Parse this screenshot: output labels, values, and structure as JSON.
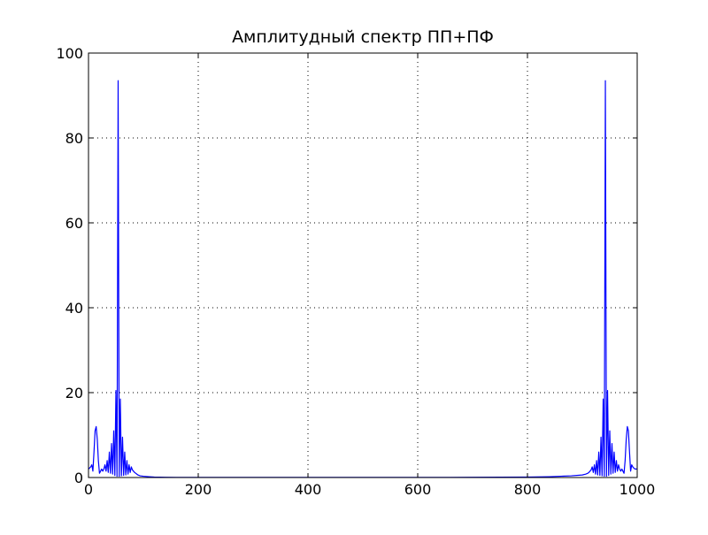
{
  "chart_data": {
    "type": "line",
    "title": "Амплитудный спектр ПП+ПФ",
    "xlabel": "",
    "ylabel": "",
    "xlim": [
      0,
      1000
    ],
    "ylim": [
      0,
      100
    ],
    "grid": true,
    "grid_style": "dotted",
    "line_color": "#0000ff",
    "xticks": [
      0,
      200,
      400,
      600,
      800,
      1000
    ],
    "yticks": [
      0,
      20,
      40,
      60,
      80,
      100
    ],
    "x_tick_labels": [
      "0",
      "200",
      "400",
      "600",
      "800",
      "1000"
    ],
    "y_tick_labels": [
      "0",
      "20",
      "40",
      "60",
      "80",
      "100"
    ],
    "series": [
      {
        "values_x": [
          0,
          4,
          6,
          8,
          10,
          12,
          14,
          16,
          18,
          20,
          22,
          24,
          26,
          28,
          30,
          32,
          34,
          36,
          38,
          40,
          42,
          44,
          46,
          48,
          50,
          52,
          54,
          56,
          58,
          60,
          62,
          64,
          66,
          68,
          70,
          72,
          74,
          76,
          78,
          80,
          82,
          84,
          86,
          88,
          90,
          94,
          100,
          110,
          120,
          140,
          160,
          200,
          300,
          400,
          500,
          600,
          700,
          800,
          840,
          860,
          880,
          900,
          906,
          910,
          912,
          914,
          916,
          918,
          920,
          922,
          924,
          926,
          928,
          930,
          932,
          934,
          936,
          938,
          940,
          942,
          944,
          946,
          948,
          950,
          952,
          954,
          956,
          958,
          960,
          962,
          964,
          966,
          968,
          970,
          972,
          974,
          976,
          978,
          980,
          982,
          984,
          986,
          988,
          990,
          992,
          994,
          996,
          1000
        ],
        "values_y": [
          2,
          2.5,
          3,
          1.5,
          6,
          11,
          12,
          9,
          4,
          1,
          1.5,
          2,
          1.5,
          2,
          3,
          1.5,
          4,
          1.2,
          6,
          1,
          8,
          0.8,
          11,
          0.5,
          20.5,
          0.3,
          93.5,
          0.3,
          18.5,
          0.4,
          9.5,
          0.5,
          6,
          0.6,
          4,
          0.8,
          3,
          1.2,
          2.5,
          1.8,
          1.5,
          1.2,
          1,
          0.8,
          0.6,
          0.4,
          0.3,
          0.2,
          0.1,
          0.05,
          0.03,
          0.02,
          0.02,
          0.02,
          0.02,
          0.03,
          0.05,
          0.1,
          0.2,
          0.3,
          0.4,
          0.6,
          0.8,
          1,
          1.2,
          1.5,
          1.8,
          2.5,
          1.2,
          3,
          0.8,
          4,
          0.6,
          6,
          0.5,
          9.5,
          0.4,
          18.5,
          0.3,
          93.5,
          0.3,
          20.5,
          0.5,
          11,
          0.8,
          8,
          1,
          6,
          1.2,
          4,
          1.5,
          3,
          2,
          1.5,
          2,
          1.5,
          1,
          4,
          9,
          12,
          11,
          6,
          1.5,
          3,
          2.5,
          2.2,
          2,
          2
        ]
      }
    ]
  }
}
